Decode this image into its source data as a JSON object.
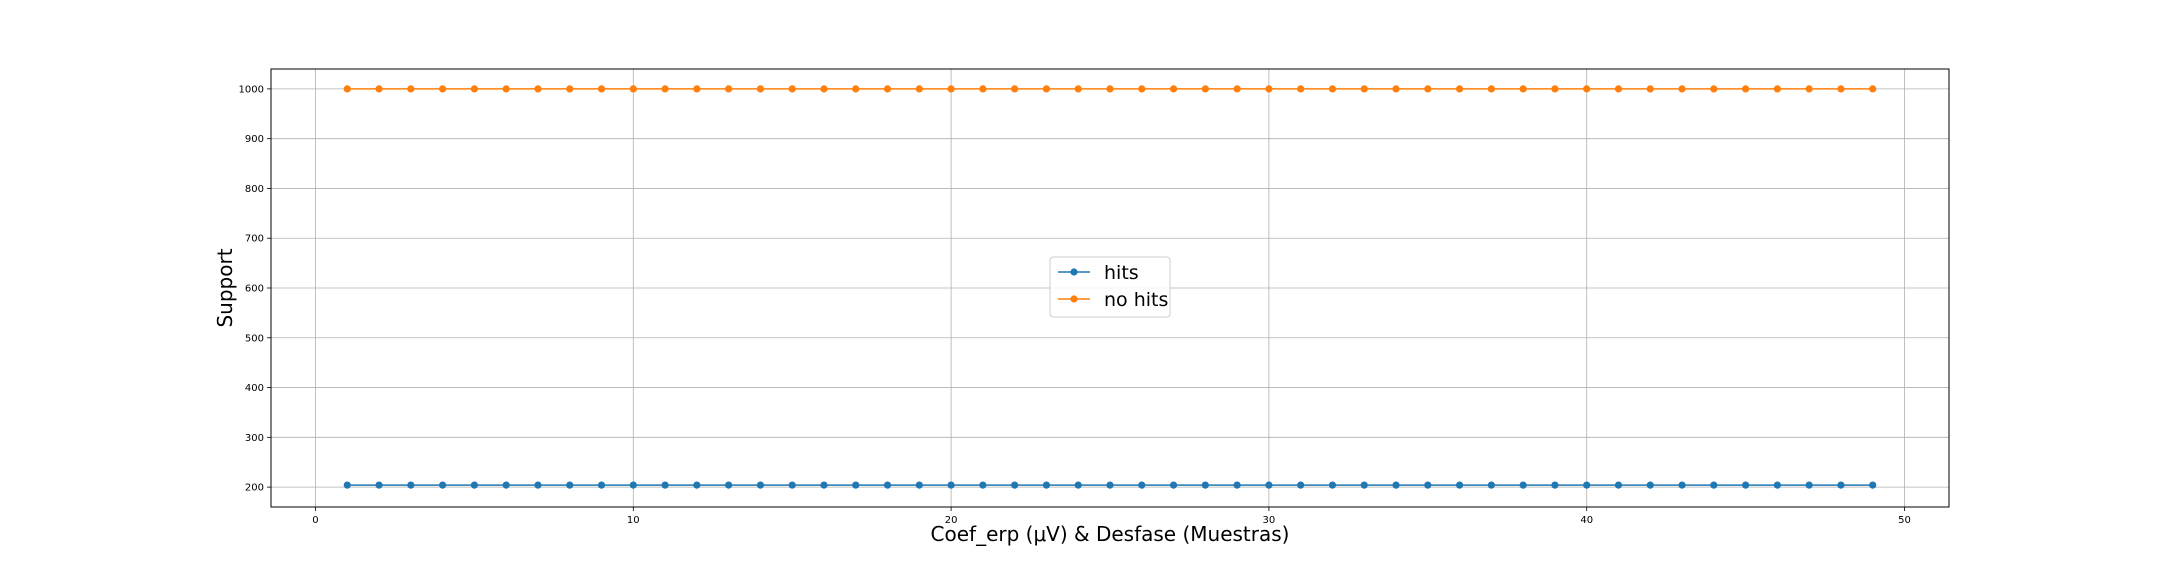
{
  "chart_data": {
    "type": "line",
    "xlabel": "Coef_erp (μV) & Desfase (Muestras)",
    "ylabel": "Support",
    "xlim": [
      -1.4,
      51.4
    ],
    "ylim": [
      160,
      1040
    ],
    "xticks": [
      0,
      10,
      20,
      30,
      40,
      50
    ],
    "yticks": [
      200,
      300,
      400,
      500,
      600,
      700,
      800,
      900,
      1000
    ],
    "grid": true,
    "legend_position": "center",
    "x": [
      1,
      2,
      3,
      4,
      5,
      6,
      7,
      8,
      9,
      10,
      11,
      12,
      13,
      14,
      15,
      16,
      17,
      18,
      19,
      20,
      21,
      22,
      23,
      24,
      25,
      26,
      27,
      28,
      29,
      30,
      31,
      32,
      33,
      34,
      35,
      36,
      37,
      38,
      39,
      40,
      41,
      42,
      43,
      44,
      45,
      46,
      47,
      48,
      49
    ],
    "series": [
      {
        "name": "hits",
        "color": "#1f77b4",
        "marker": "circle",
        "values": [
          204,
          204,
          204,
          204,
          204,
          204,
          204,
          204,
          204,
          204,
          204,
          204,
          204,
          204,
          204,
          204,
          204,
          204,
          204,
          204,
          204,
          204,
          204,
          204,
          204,
          204,
          204,
          204,
          204,
          204,
          204,
          204,
          204,
          204,
          204,
          204,
          204,
          204,
          204,
          204,
          204,
          204,
          204,
          204,
          204,
          204,
          204,
          204,
          204
        ]
      },
      {
        "name": "no hits",
        "color": "#ff7f0e",
        "marker": "circle",
        "values": [
          1000,
          1000,
          1000,
          1000,
          1000,
          1000,
          1000,
          1000,
          1000,
          1000,
          1000,
          1000,
          1000,
          1000,
          1000,
          1000,
          1000,
          1000,
          1000,
          1000,
          1000,
          1000,
          1000,
          1000,
          1000,
          1000,
          1000,
          1000,
          1000,
          1000,
          1000,
          1000,
          1000,
          1000,
          1000,
          1000,
          1000,
          1000,
          1000,
          1000,
          1000,
          1000,
          1000,
          1000,
          1000,
          1000,
          1000,
          1000,
          1000
        ]
      }
    ]
  }
}
